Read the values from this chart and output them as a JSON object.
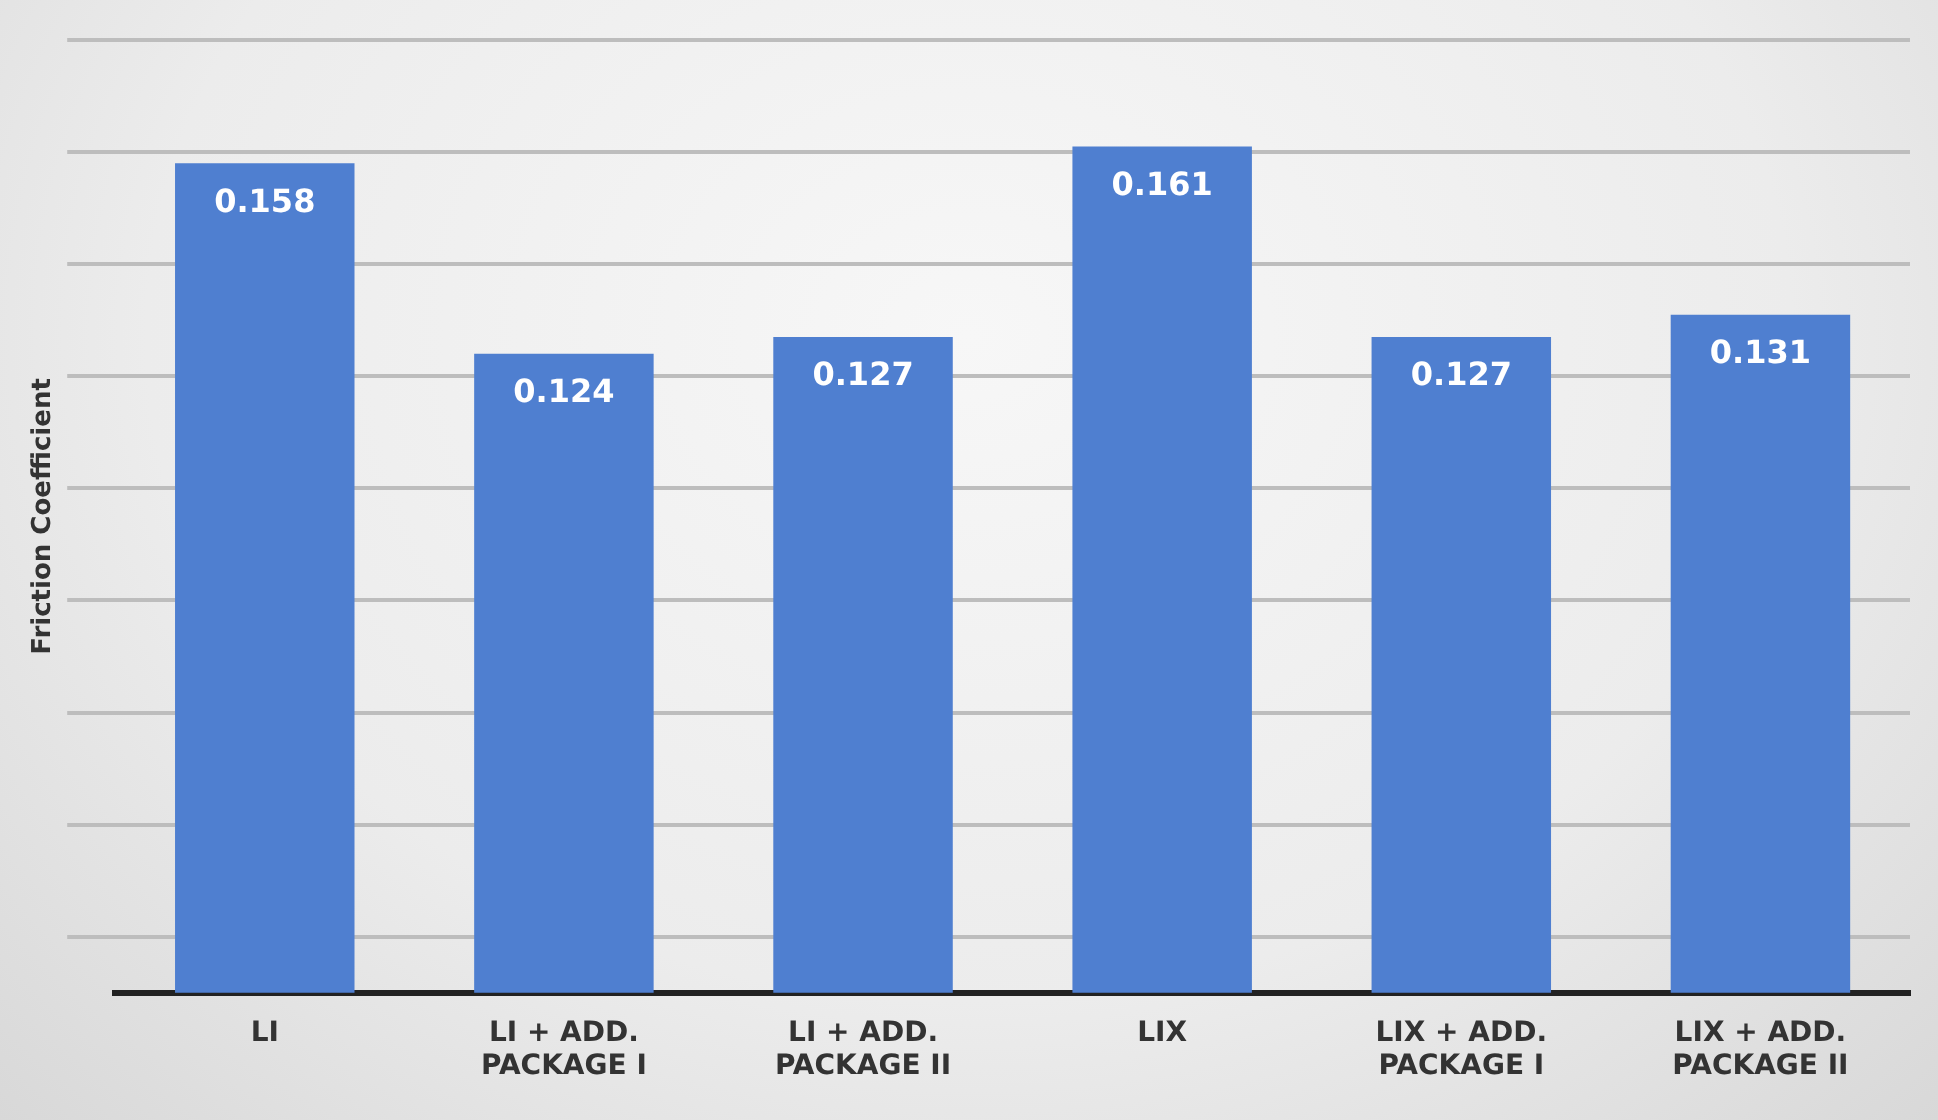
{
  "chart_data": {
    "type": "bar",
    "ylabel": "Friction Coefficient",
    "categories": [
      "LI",
      "LI + ADD. PACKAGE I",
      "LI + ADD. PACKAGE II",
      "LIX",
      "LIX + ADD. PACKAGE I",
      "LIX + ADD. PACKAGE II"
    ],
    "values": [
      0.158,
      0.124,
      0.127,
      0.161,
      0.127,
      0.131
    ],
    "color": "#4f7fd0",
    "ylim": [
      0.01,
      0.18
    ],
    "yticks": [
      {
        "value": 0.02,
        "label": null
      },
      {
        "value": 0.04,
        "label": null
      },
      {
        "value": 0.06,
        "label": null
      },
      {
        "value": 0.08,
        "label": null
      },
      {
        "value": 0.1,
        "label": null
      },
      {
        "value": 0.12,
        "label": null
      },
      {
        "value": 0.14,
        "label": null
      },
      {
        "value": 0.16,
        "label": null
      },
      {
        "value": 0.18,
        "label": null
      }
    ],
    "grid": "y",
    "data_labels": true,
    "tick_labels": "x",
    "legend": false
  }
}
